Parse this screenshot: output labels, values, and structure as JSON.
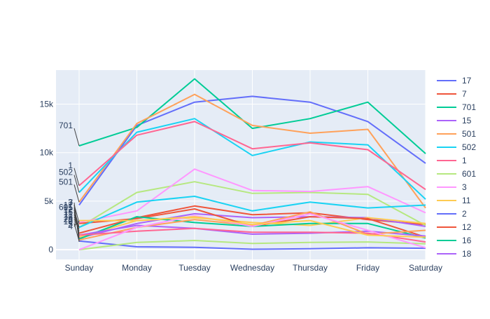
{
  "chart_data": {
    "type": "line",
    "title": "",
    "xlabel": "",
    "ylabel": "",
    "categories": [
      "Sunday",
      "Monday",
      "Tuesday",
      "Wednesday",
      "Thursday",
      "Friday",
      "Saturday"
    ],
    "ylim": [
      -1000,
      18500
    ],
    "y_ticks": [
      0,
      5000,
      10000,
      15000
    ],
    "y_tick_labels": [
      "0",
      "5k",
      "10k",
      "15k"
    ],
    "grid": true,
    "legend_position": "right",
    "background": "#e5ecf6",
    "series": [
      {
        "name": "17",
        "color": "#636efa",
        "values": [
          4600,
          12800,
          15200,
          15800,
          15200,
          13200,
          8900
        ],
        "annotation": ""
      },
      {
        "name": "7",
        "color": "#EF553B",
        "values": [
          1700,
          3300,
          4500,
          3600,
          3800,
          3100,
          2600
        ],
        "annotation": ""
      },
      {
        "name": "701",
        "color": "#00cc96",
        "values": [
          10700,
          12600,
          17600,
          12500,
          13500,
          15200,
          9900
        ],
        "annotation": "701"
      },
      {
        "name": "15",
        "color": "#ab63fa",
        "values": [
          1200,
          2700,
          3700,
          3300,
          3400,
          3300,
          2400
        ],
        "annotation": ""
      },
      {
        "name": "501",
        "color": "#FFA15A",
        "values": [
          4900,
          13000,
          16000,
          12800,
          12000,
          12400,
          4300
        ],
        "annotation": "501"
      },
      {
        "name": "502",
        "color": "#19d3f3",
        "values": [
          5900,
          12100,
          13500,
          9700,
          11100,
          10800,
          5200
        ],
        "annotation": "502"
      },
      {
        "name": "1",
        "color": "#FF6692",
        "values": [
          6600,
          11800,
          13200,
          10400,
          11000,
          10300,
          6200
        ],
        "annotation": "1"
      },
      {
        "name": "601",
        "color": "#B6E880",
        "values": [
          2300,
          5900,
          7000,
          5800,
          5900,
          5700,
          2500
        ],
        "annotation": "601"
      },
      {
        "name": "3",
        "color": "#FF97FF",
        "values": [
          2800,
          4000,
          8300,
          6100,
          6000,
          6500,
          3800
        ],
        "annotation": "3"
      },
      {
        "name": "11",
        "color": "#FECB52",
        "values": [
          1300,
          3000,
          3300,
          2800,
          2500,
          3300,
          2700
        ],
        "annotation": ""
      },
      {
        "name": "2",
        "color": "#636efa",
        "values": [
          900,
          300,
          250,
          50,
          100,
          200,
          150
        ],
        "annotation": "2"
      },
      {
        "name": "12",
        "color": "#EF553B",
        "values": [
          2700,
          3200,
          4200,
          2400,
          3400,
          3200,
          1300
        ],
        "annotation": ""
      },
      {
        "name": "16",
        "color": "#00cc96",
        "values": [
          1100,
          3400,
          2800,
          2400,
          2700,
          2700,
          1200
        ],
        "annotation": ""
      },
      {
        "name": "18",
        "color": "#ab63fa",
        "values": [
          1500,
          2500,
          2200,
          1600,
          1700,
          1900,
          1400
        ],
        "annotation": ""
      },
      {
        "name": "",
        "color": "#FFA15A",
        "values": [
          1000,
          2300,
          3100,
          2500,
          3900,
          1600,
          2000
        ],
        "annotation": ""
      },
      {
        "name": "",
        "color": "#19d3f3",
        "values": [
          2300,
          4900,
          5500,
          4000,
          4900,
          4300,
          4600
        ],
        "annotation": ""
      },
      {
        "name": "",
        "color": "#FF6692",
        "values": [
          1500,
          1900,
          2200,
          1800,
          1800,
          1700,
          800
        ],
        "annotation": ""
      },
      {
        "name": "",
        "color": "#B6E880",
        "values": [
          0,
          750,
          950,
          650,
          750,
          800,
          600
        ],
        "annotation": ""
      },
      {
        "name": "",
        "color": "#FF97FF",
        "values": [
          0,
          2300,
          3500,
          2400,
          3700,
          2000,
          200
        ],
        "annotation": ""
      },
      {
        "name": "",
        "color": "#FECB52",
        "values": [
          3000,
          3000,
          3400,
          2600,
          3000,
          1500,
          1300
        ],
        "annotation": ""
      }
    ],
    "stacked_annotations": [
      "7",
      "17",
      "15",
      "12",
      "16",
      "11",
      "18",
      "26",
      "10",
      "5",
      "4"
    ]
  }
}
